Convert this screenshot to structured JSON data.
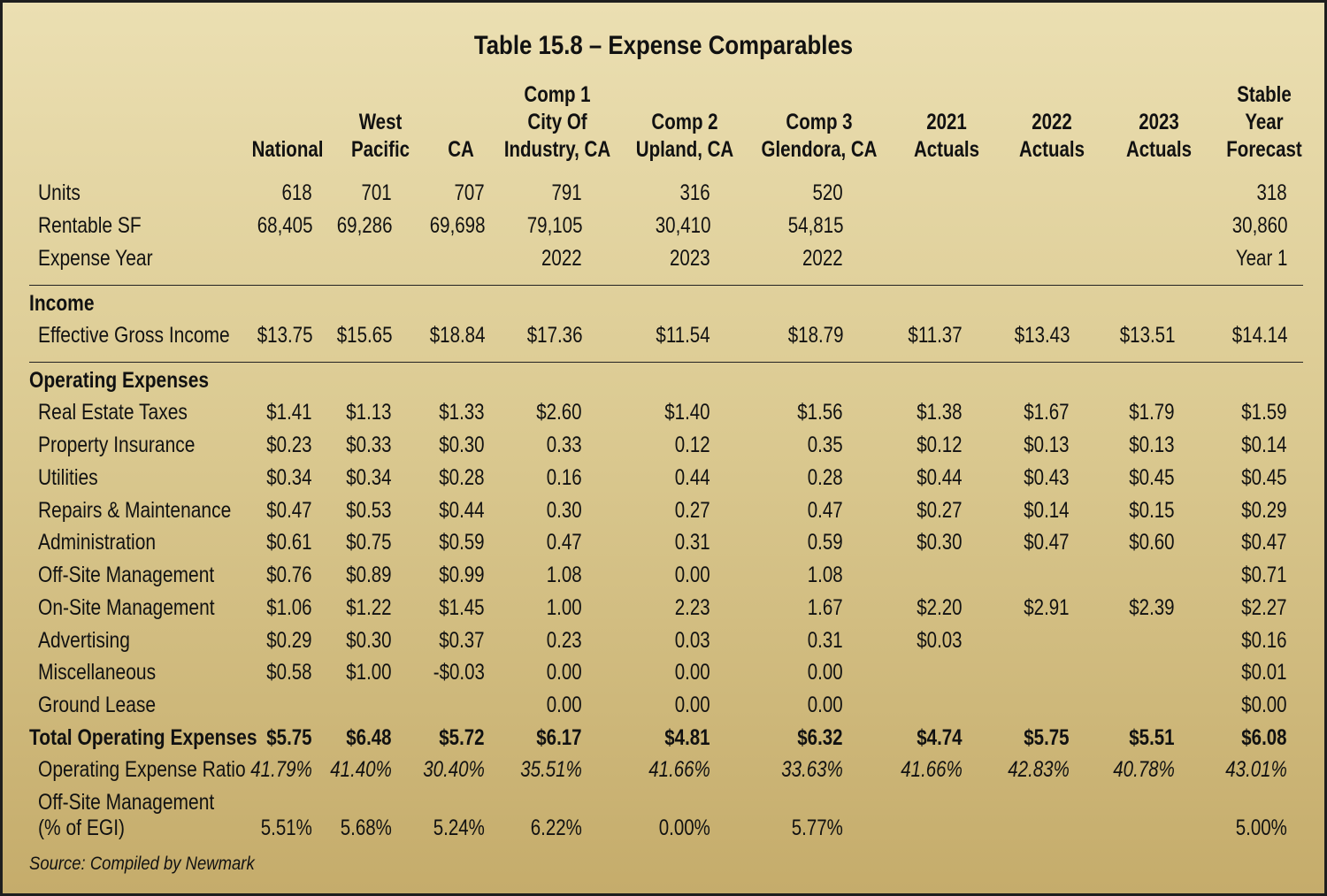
{
  "title": "Table 15.8 – Expense Comparables",
  "columns": [
    {
      "lines": [
        "National"
      ]
    },
    {
      "lines": [
        "West",
        "Pacific"
      ]
    },
    {
      "lines": [
        "CA"
      ]
    },
    {
      "lines": [
        "Comp 1",
        "City Of",
        "Industry, CA"
      ]
    },
    {
      "lines": [
        "Comp 2",
        "Upland, CA"
      ]
    },
    {
      "lines": [
        "Comp 3",
        "Glendora, CA"
      ]
    },
    {
      "lines": [
        "2021",
        "Actuals"
      ]
    },
    {
      "lines": [
        "2022",
        "Actuals"
      ]
    },
    {
      "lines": [
        "2023",
        "Actuals"
      ]
    },
    {
      "lines": [
        "Stable",
        "Year",
        "Forecast"
      ]
    }
  ],
  "rows": [
    {
      "label": "Units",
      "values": [
        "618",
        "701",
        "707",
        "791",
        "316",
        "520",
        "",
        "",
        "",
        "318"
      ]
    },
    {
      "label": "Rentable SF",
      "values": [
        "68,405",
        "69,286",
        "69,698",
        "79,105",
        "30,410",
        "54,815",
        "",
        "",
        "",
        "30,860"
      ]
    },
    {
      "label": "Expense Year",
      "values": [
        "",
        "",
        "",
        "2022",
        "2023",
        "2022",
        "",
        "",
        "",
        "Year 1"
      ]
    },
    {
      "section": "Income"
    },
    {
      "label": "Effective Gross Income",
      "values": [
        "$13.75",
        "$15.65",
        "$18.84",
        "$17.36",
        "$11.54",
        "$18.79",
        "$11.37",
        "$13.43",
        "$13.51",
        "$14.14"
      ]
    },
    {
      "section": "Operating Expenses"
    },
    {
      "label": "Real Estate Taxes",
      "values": [
        "$1.41",
        "$1.13",
        "$1.33",
        "$2.60",
        "$1.40",
        "$1.56",
        "$1.38",
        "$1.67",
        "$1.79",
        "$1.59"
      ]
    },
    {
      "label": "Property Insurance",
      "values": [
        "$0.23",
        "$0.33",
        "$0.30",
        "0.33",
        "0.12",
        "0.35",
        "$0.12",
        "$0.13",
        "$0.13",
        "$0.14"
      ]
    },
    {
      "label": "Utilities",
      "values": [
        "$0.34",
        "$0.34",
        "$0.28",
        "0.16",
        "0.44",
        "0.28",
        "$0.44",
        "$0.43",
        "$0.45",
        "$0.45"
      ]
    },
    {
      "label": "Repairs & Maintenance",
      "values": [
        "$0.47",
        "$0.53",
        "$0.44",
        "0.30",
        "0.27",
        "0.47",
        "$0.27",
        "$0.14",
        "$0.15",
        "$0.29"
      ]
    },
    {
      "label": "Administration",
      "values": [
        "$0.61",
        "$0.75",
        "$0.59",
        "0.47",
        "0.31",
        "0.59",
        "$0.30",
        "$0.47",
        "$0.60",
        "$0.47"
      ]
    },
    {
      "label": "Off-Site Management",
      "values": [
        "$0.76",
        "$0.89",
        "$0.99",
        "1.08",
        "0.00",
        "1.08",
        "",
        "",
        "",
        "$0.71"
      ]
    },
    {
      "label": "On-Site Management",
      "values": [
        "$1.06",
        "$1.22",
        "$1.45",
        "1.00",
        "2.23",
        "1.67",
        "$2.20",
        "$2.91",
        "$2.39",
        "$2.27"
      ]
    },
    {
      "label": "Advertising",
      "values": [
        "$0.29",
        "$0.30",
        "$0.37",
        "0.23",
        "0.03",
        "0.31",
        "$0.03",
        "",
        "",
        "$0.16"
      ]
    },
    {
      "label": "Miscellaneous",
      "values": [
        "$0.58",
        "$1.00",
        "-$0.03",
        "0.00",
        "0.00",
        "0.00",
        "",
        "",
        "",
        "$0.01"
      ]
    },
    {
      "label": "Ground Lease",
      "values": [
        "",
        "",
        "",
        "0.00",
        "0.00",
        "0.00",
        "",
        "",
        "",
        "$0.00"
      ]
    },
    {
      "label": "Total Operating Expenses",
      "style": "total",
      "values": [
        "$5.75",
        "$6.48",
        "$5.72",
        "$6.17",
        "$4.81",
        "$6.32",
        "$4.74",
        "$5.75",
        "$5.51",
        "$6.08"
      ]
    },
    {
      "label": "Operating Expense Ratio",
      "style": "italic",
      "values": [
        "41.79%",
        "41.40%",
        "30.40%",
        "35.51%",
        "41.66%",
        "33.63%",
        "41.66%",
        "42.83%",
        "40.78%",
        "43.01%"
      ]
    },
    {
      "label": "Off-Site Management",
      "label2": "(% of EGI)",
      "values": [
        "5.51%",
        "5.68%",
        "5.24%",
        "6.22%",
        "0.00%",
        "5.77%",
        "",
        "",
        "",
        "5.00%"
      ]
    }
  ],
  "source": "Source: Compiled by Newmark"
}
